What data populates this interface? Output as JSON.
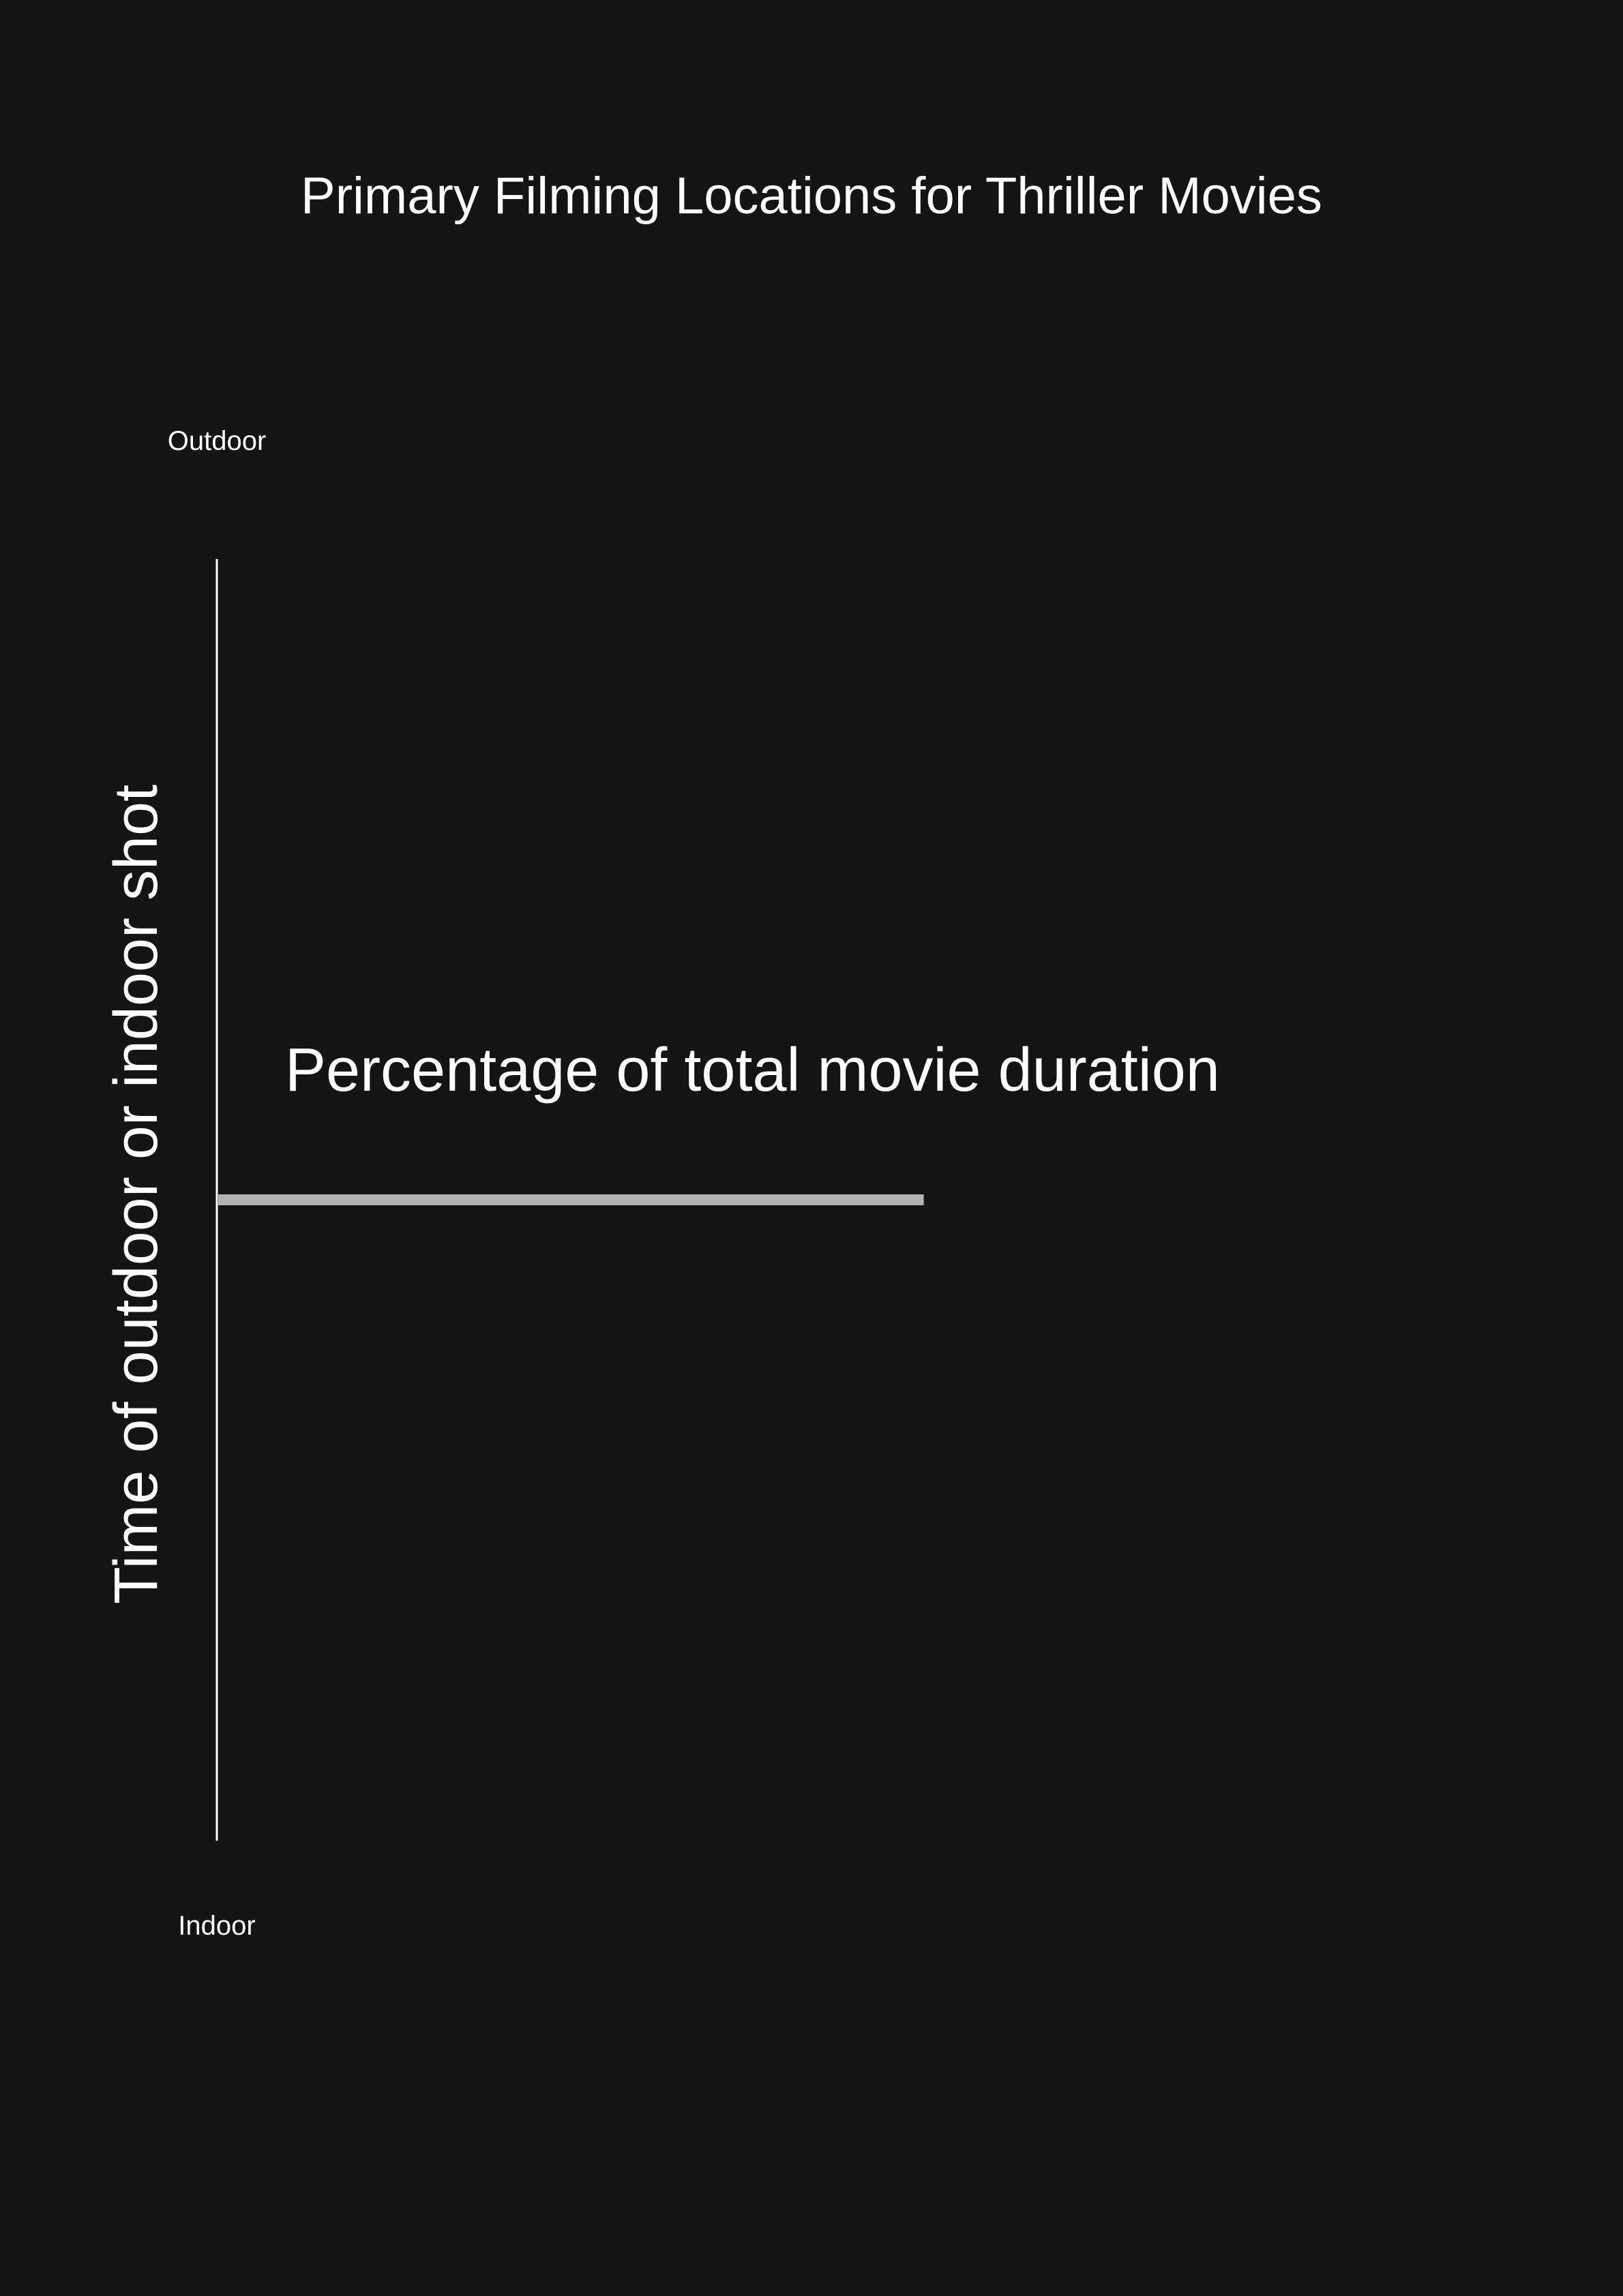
{
  "chart_data": {
    "type": "bar",
    "title": "Primary Filming Locations for Thriller Movies",
    "ylabel": "Time of outdoor or indoor shot",
    "axis_end_labels": {
      "top": "Outdoor",
      "bottom": "Indoor"
    },
    "annotation": "Percentage of total movie duration",
    "orientation": "horizontal",
    "ylim": [
      0,
      1
    ],
    "bars": [
      {
        "position": 0.5,
        "value": 0.71
      }
    ],
    "colors": {
      "background": "#141414",
      "axis": "#ffffff",
      "bar": "#b3b3b3",
      "text": "#ffffff"
    },
    "grid": false,
    "legend": "none"
  }
}
